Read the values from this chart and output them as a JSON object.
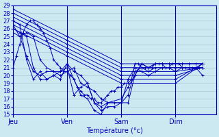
{
  "xlabel": "Température (°c)",
  "ylim": [
    15,
    29
  ],
  "yticks": [
    15,
    16,
    17,
    18,
    19,
    20,
    21,
    22,
    23,
    24,
    25,
    26,
    27,
    28,
    29
  ],
  "day_labels": [
    "Jeu",
    "Ven",
    "Sam",
    "Dim"
  ],
  "day_positions": [
    0,
    96,
    192,
    288
  ],
  "x_max": 360,
  "bg_color": "#cce8f0",
  "grid_color": "#aaccdd",
  "line_color": "#0000bb",
  "marker": "+",
  "series": [
    {
      "x": [
        0,
        6,
        12,
        18,
        24,
        30,
        36,
        42,
        48,
        54,
        60,
        66,
        72,
        78,
        84,
        90,
        96,
        102,
        108,
        114,
        120,
        126,
        132,
        138,
        144,
        150,
        156,
        162,
        168,
        174,
        180,
        186,
        192,
        198,
        204,
        210,
        216,
        222,
        228,
        234,
        240,
        246,
        252,
        258,
        264,
        270,
        276,
        282,
        288,
        294,
        300,
        306,
        312,
        318,
        324,
        330,
        336
      ],
      "y": [
        21.0,
        22.5,
        24.0,
        25.5,
        26.5,
        27.0,
        27.0,
        26.5,
        26.0,
        25.5,
        24.5,
        23.5,
        22.0,
        21.5,
        21.0,
        20.5,
        20.5,
        20.0,
        19.5,
        18.5,
        18.0,
        17.5,
        17.5,
        17.0,
        17.0,
        16.5,
        16.5,
        17.0,
        17.5,
        18.0,
        18.0,
        18.5,
        18.5,
        19.0,
        19.0,
        19.5,
        21.5,
        21.5,
        21.0,
        21.0,
        21.0,
        21.0,
        21.5,
        21.5,
        21.5,
        21.0,
        21.0,
        21.5,
        21.5,
        21.5,
        21.0,
        21.0,
        21.0,
        21.0,
        21.0,
        21.0,
        21.0
      ]
    },
    {
      "x": [
        0,
        96,
        192,
        288,
        336
      ],
      "y": [
        28.5,
        25.0,
        21.5,
        21.5,
        21.5
      ]
    },
    {
      "x": [
        0,
        96,
        192,
        288,
        336
      ],
      "y": [
        28.0,
        24.5,
        21.0,
        21.0,
        21.0
      ]
    },
    {
      "x": [
        0,
        96,
        192,
        288,
        336
      ],
      "y": [
        27.5,
        24.0,
        20.5,
        20.5,
        21.0
      ]
    },
    {
      "x": [
        0,
        96,
        192,
        288,
        336
      ],
      "y": [
        27.0,
        23.5,
        20.0,
        20.0,
        21.0
      ]
    },
    {
      "x": [
        0,
        96,
        192,
        288,
        336
      ],
      "y": [
        26.5,
        23.0,
        19.5,
        19.5,
        21.5
      ]
    },
    {
      "x": [
        0,
        96,
        192,
        288,
        336
      ],
      "y": [
        26.0,
        22.5,
        19.0,
        19.0,
        21.5
      ]
    },
    {
      "x": [
        0,
        12,
        24,
        36,
        48,
        60,
        72,
        84,
        96,
        108,
        120,
        132,
        144,
        156,
        168,
        180,
        192,
        204,
        216,
        228,
        240,
        252,
        264,
        276,
        288,
        300,
        312,
        324,
        336
      ],
      "y": [
        25.5,
        25.0,
        25.5,
        25.0,
        22.0,
        21.0,
        20.5,
        20.0,
        20.5,
        21.0,
        19.0,
        18.5,
        18.0,
        17.0,
        16.5,
        16.5,
        16.5,
        19.5,
        21.0,
        20.5,
        20.0,
        20.5,
        21.0,
        21.0,
        21.0,
        21.0,
        21.0,
        21.0,
        20.0
      ]
    },
    {
      "x": [
        0,
        12,
        24,
        36,
        48,
        60,
        72,
        84,
        96,
        108,
        120,
        132,
        144,
        156,
        168,
        192,
        204,
        216,
        228,
        240,
        252,
        264,
        276,
        288,
        300,
        312,
        324,
        336
      ],
      "y": [
        26.0,
        25.5,
        25.0,
        21.0,
        19.5,
        19.5,
        20.0,
        20.5,
        21.0,
        17.5,
        18.5,
        19.0,
        16.5,
        16.0,
        16.5,
        16.5,
        17.5,
        20.5,
        21.0,
        20.5,
        21.0,
        21.0,
        21.0,
        20.5,
        21.0,
        21.0,
        21.0,
        21.0
      ]
    },
    {
      "x": [
        0,
        12,
        24,
        36,
        48,
        60,
        72,
        84,
        96,
        108,
        120,
        132,
        144,
        156,
        168,
        180,
        192,
        204,
        216,
        228,
        240,
        252,
        264,
        276,
        288,
        300,
        312,
        324,
        336
      ],
      "y": [
        26.5,
        25.0,
        22.5,
        20.5,
        20.0,
        20.5,
        20.5,
        20.5,
        21.5,
        20.5,
        20.0,
        19.0,
        16.5,
        15.5,
        16.0,
        16.0,
        16.5,
        16.5,
        20.0,
        21.5,
        21.0,
        21.5,
        21.5,
        21.5,
        21.5,
        21.5,
        21.5,
        21.5,
        21.5
      ]
    },
    {
      "x": [
        0,
        12,
        24,
        36,
        48,
        60,
        72,
        84,
        96,
        108,
        120,
        132,
        144,
        156,
        168,
        192,
        204,
        216,
        228,
        240,
        252,
        264,
        276,
        288,
        300,
        312,
        324,
        336
      ],
      "y": [
        27.0,
        26.5,
        22.0,
        19.5,
        20.5,
        19.5,
        20.0,
        19.5,
        21.5,
        19.5,
        17.5,
        17.0,
        15.5,
        15.0,
        16.5,
        17.0,
        18.5,
        20.0,
        21.5,
        21.0,
        21.5,
        21.5,
        21.5,
        21.5,
        21.5,
        21.5,
        21.5,
        21.5
      ]
    }
  ]
}
